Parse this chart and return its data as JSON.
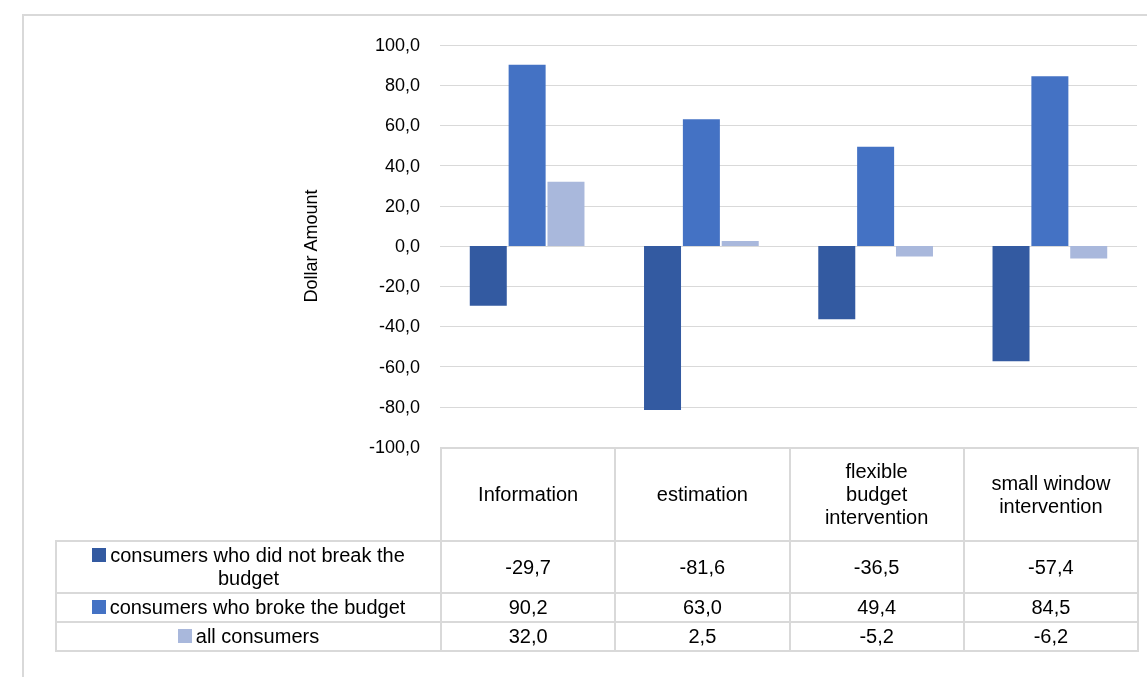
{
  "chart_data": {
    "type": "bar",
    "ylabel": "Dollar Amount",
    "categories": [
      "Information",
      "estimation",
      "flexible budget intervention",
      "small window intervention"
    ],
    "series": [
      {
        "name": "consumers who did not break the budget",
        "color": "#335aa1",
        "values": [
          -29.7,
          -81.6,
          -36.5,
          -57.4
        ],
        "value_labels": [
          "-29,7",
          "-81,6",
          "-36,5",
          "-57,4"
        ]
      },
      {
        "name": "consumers who broke the budget",
        "color": "#4472c4",
        "values": [
          90.2,
          63.0,
          49.4,
          84.5
        ],
        "value_labels": [
          "90,2",
          "63,0",
          "49,4",
          "84,5"
        ]
      },
      {
        "name": "all consumers",
        "color": "#a9b8dc",
        "values": [
          32.0,
          2.5,
          -5.2,
          -6.2
        ],
        "value_labels": [
          "32,0",
          "2,5",
          "-5,2",
          "-6,2"
        ]
      }
    ],
    "ylim": [
      -100,
      100
    ],
    "yticks": [
      {
        "value": -100,
        "label": "-100,0"
      },
      {
        "value": -80,
        "label": "-80,0"
      },
      {
        "value": -60,
        "label": "-60,0"
      },
      {
        "value": -40,
        "label": "-40,0"
      },
      {
        "value": -20,
        "label": "-20,0"
      },
      {
        "value": 0,
        "label": "0,0"
      },
      {
        "value": 20,
        "label": "20,0"
      },
      {
        "value": 40,
        "label": "40,0"
      },
      {
        "value": 60,
        "label": "60,0"
      },
      {
        "value": 80,
        "label": "80,0"
      },
      {
        "value": 100,
        "label": "100,0"
      }
    ],
    "grid": "y",
    "legend": "bottom"
  }
}
